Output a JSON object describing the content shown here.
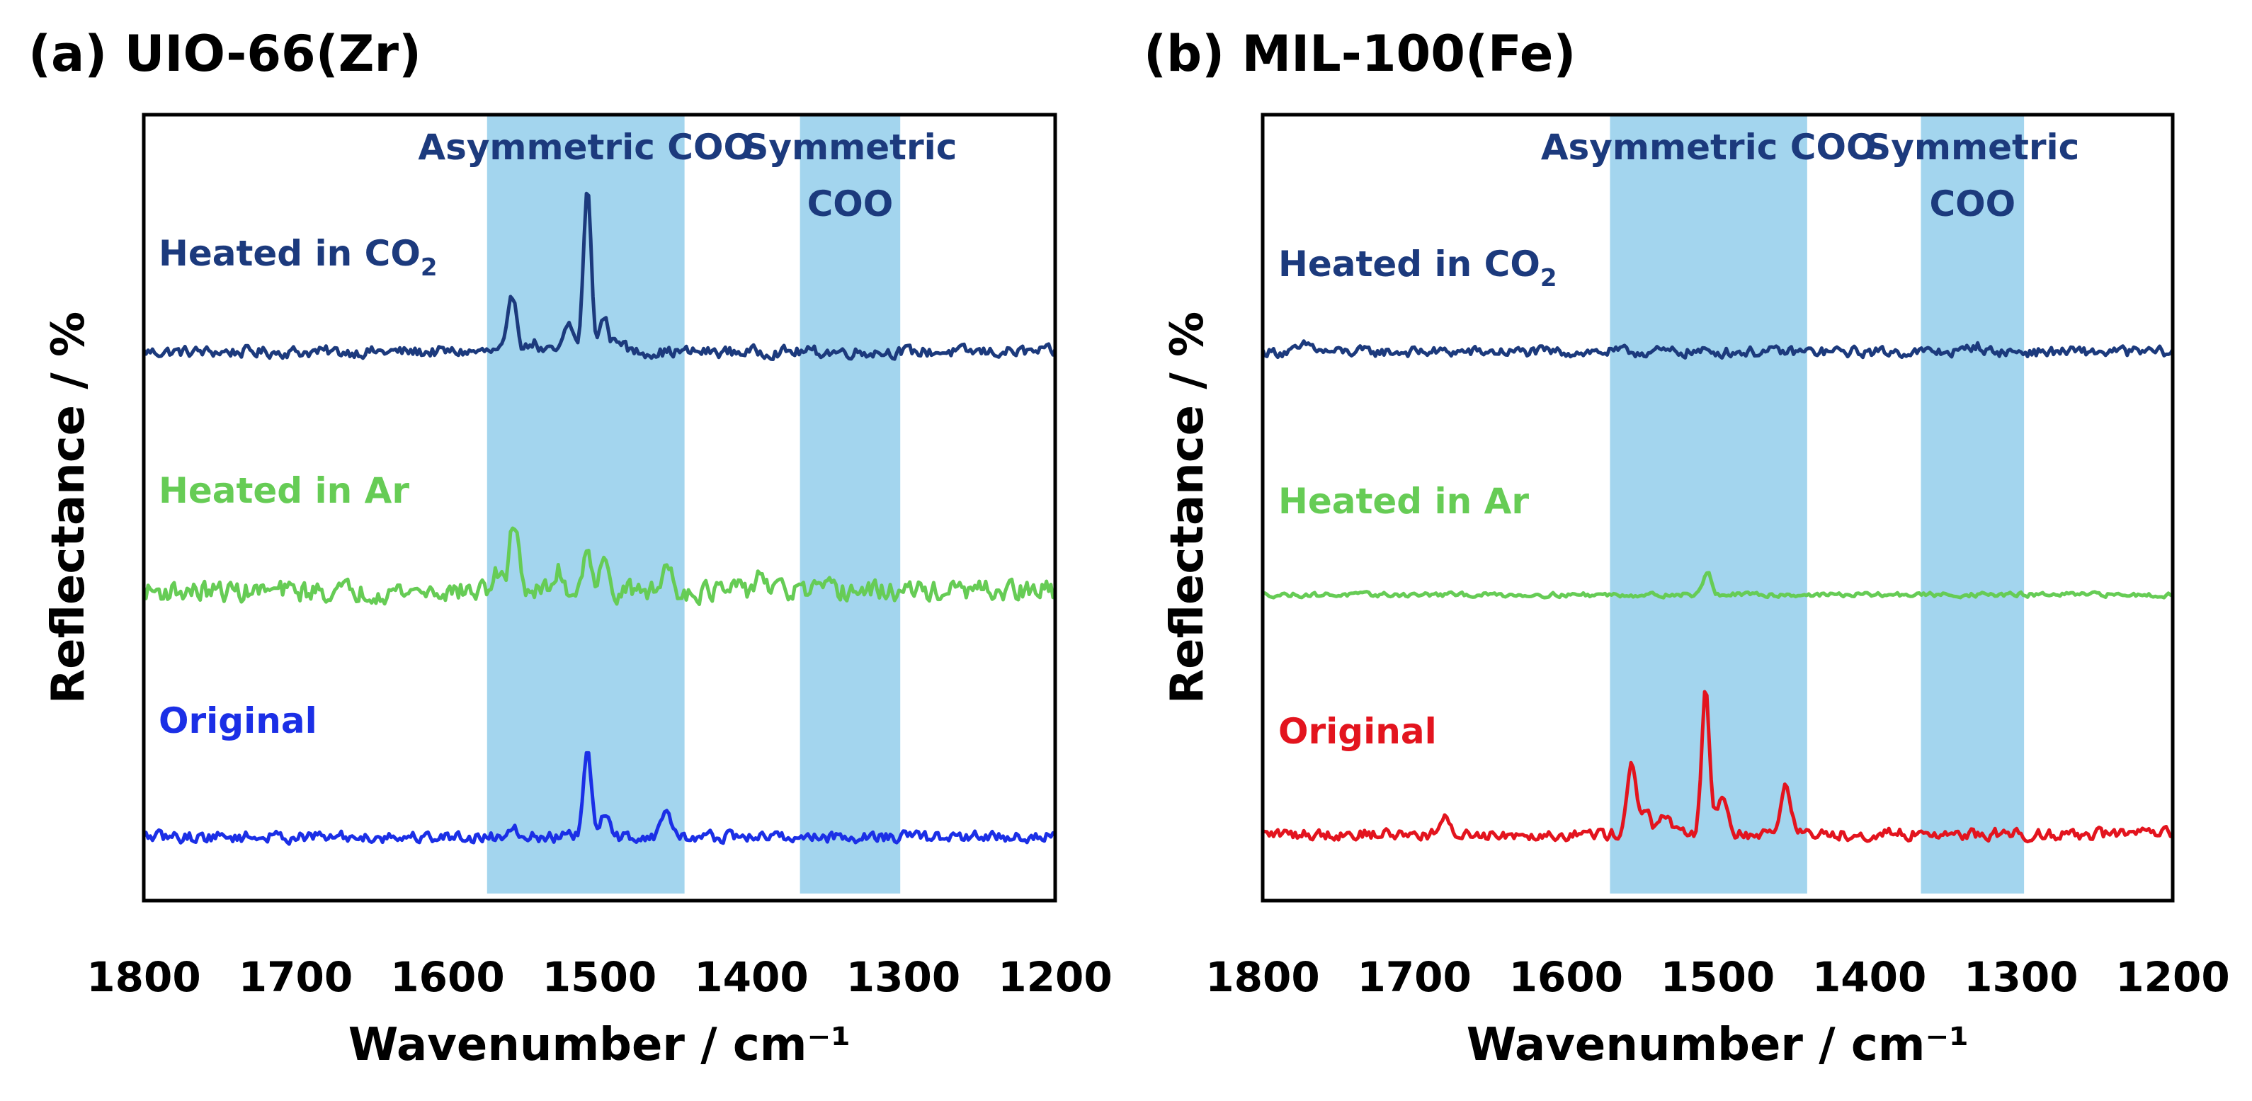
{
  "chart_data": [
    {
      "type": "line",
      "title": "(a) UIO-66(Zr)",
      "xlabel": "Wavenumber / cm⁻¹",
      "ylabel": "Reflectance / %",
      "xlim": [
        1800,
        1200
      ],
      "x_ticks": [
        "1800",
        "1700",
        "1600",
        "1500",
        "1400",
        "1300",
        "1200"
      ],
      "shaded_regions": [
        {
          "lines": [
            "Asymmetric COO"
          ],
          "x_range": [
            1574,
            1444
          ],
          "color": "#a3d5ee"
        },
        {
          "lines": [
            "Symmetric",
            "COO"
          ],
          "x_range": [
            1368,
            1302
          ],
          "color": "#a3d5ee"
        }
      ],
      "series": [
        {
          "name": "Heated in CO",
          "name_subscript": "2",
          "color": "#1c3a7d",
          "offset": 2.0,
          "noise_amplitude": 0.05,
          "peaks": [
            {
              "x": 1508,
              "height": 0.95,
              "width": 2.5
            },
            {
              "x": 1557,
              "height": 0.32,
              "width": 3
            },
            {
              "x": 1520,
              "height": 0.16,
              "width": 3
            },
            {
              "x": 1497,
              "height": 0.2,
              "width": 3
            },
            {
              "x": 1487,
              "height": 0.08,
              "width": 3
            },
            {
              "x": 1544,
              "height": 0.06,
              "width": 3
            }
          ]
        },
        {
          "name": "Heated in Ar",
          "color": "#66cc55",
          "offset": 1.0,
          "noise_amplitude": 0.09,
          "peaks": [
            {
              "x": 1556,
              "height": 0.42,
              "width": 3
            },
            {
              "x": 1508,
              "height": 0.3,
              "width": 2.5
            },
            {
              "x": 1497,
              "height": 0.15,
              "width": 3
            },
            {
              "x": 1527,
              "height": 0.12,
              "width": 3
            },
            {
              "x": 1455,
              "height": 0.16,
              "width": 3
            },
            {
              "x": 1394,
              "height": 0.12,
              "width": 3
            },
            {
              "x": 1568,
              "height": 0.1,
              "width": 3
            }
          ]
        },
        {
          "name": "Original",
          "color": "#1b2fe6",
          "offset": 0.0,
          "noise_amplitude": 0.05,
          "peaks": [
            {
              "x": 1508,
              "height": 0.5,
              "width": 2.5
            },
            {
              "x": 1497,
              "height": 0.13,
              "width": 3
            },
            {
              "x": 1456,
              "height": 0.16,
              "width": 3
            },
            {
              "x": 1557,
              "height": 0.08,
              "width": 3
            }
          ]
        }
      ]
    },
    {
      "type": "line",
      "title": "(b) MIL-100(Fe)",
      "xlabel": "Wavenumber / cm⁻¹",
      "ylabel": "Reflectance / %",
      "xlim": [
        1800,
        1200
      ],
      "x_ticks": [
        "1800",
        "1700",
        "1600",
        "1500",
        "1400",
        "1300",
        "1200"
      ],
      "shaded_regions": [
        {
          "lines": [
            "Asymmetric COO"
          ],
          "x_range": [
            1571,
            1441
          ],
          "color": "#a3d5ee"
        },
        {
          "lines": [
            "Symmetric",
            "COO"
          ],
          "x_range": [
            1366,
            1298
          ],
          "color": "#a3d5ee"
        }
      ],
      "series": [
        {
          "name": "Heated in CO",
          "name_subscript": "2",
          "color": "#1c3a7d",
          "offset": 2.0,
          "noise_amplitude": 0.045,
          "peaks": [
            {
              "x": 1330,
              "height": 0.04,
              "width": 4
            },
            {
              "x": 1770,
              "height": 0.04,
              "width": 4
            }
          ]
        },
        {
          "name": "Heated in Ar",
          "color": "#66cc55",
          "offset": 1.0,
          "noise_amplitude": 0.02,
          "peaks": [
            {
              "x": 1507,
              "height": 0.14,
              "width": 2.5
            }
          ]
        },
        {
          "name": "Original",
          "color": "#e3141e",
          "offset": 0.0,
          "noise_amplitude": 0.05,
          "peaks": [
            {
              "x": 1508,
              "height": 0.85,
              "width": 2.5
            },
            {
              "x": 1557,
              "height": 0.42,
              "width": 3
            },
            {
              "x": 1455,
              "height": 0.32,
              "width": 3
            },
            {
              "x": 1497,
              "height": 0.25,
              "width": 3
            },
            {
              "x": 1547,
              "height": 0.15,
              "width": 3
            },
            {
              "x": 1535,
              "height": 0.12,
              "width": 3
            },
            {
              "x": 1680,
              "height": 0.08,
              "width": 3
            }
          ]
        }
      ]
    }
  ]
}
